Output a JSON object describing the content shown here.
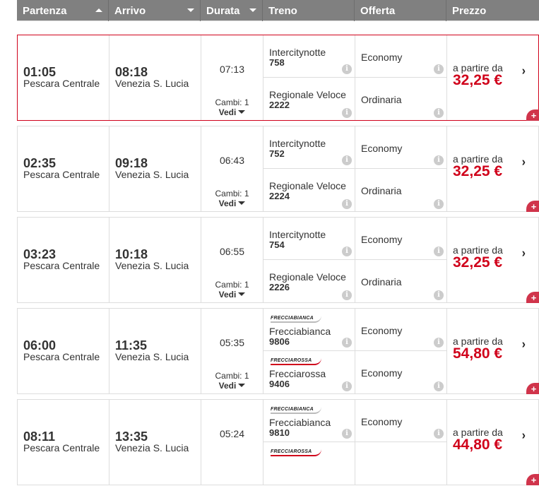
{
  "header": {
    "columns": [
      {
        "label": "Partenza",
        "sort": "up"
      },
      {
        "label": "Arrivo",
        "sort": "down"
      },
      {
        "label": "Durata",
        "sort": "down"
      },
      {
        "label": "Treno"
      },
      {
        "label": "Offerta"
      },
      {
        "label": "Prezzo"
      }
    ]
  },
  "labels": {
    "cambi_prefix": "Cambi: ",
    "vedi": "Vedi",
    "from": "a partire da",
    "info": "i",
    "plus": "+",
    "chevron": "›"
  },
  "colors": {
    "accent": "#d0021b",
    "header_bg": "#808080"
  },
  "solutions": [
    {
      "selected": true,
      "dep_time": "01:05",
      "dep_station": "Pescara Centrale",
      "arr_time": "08:18",
      "arr_station": "Venezia S. Lucia",
      "duration": "07:13",
      "changes": "1",
      "price": "32,25 €",
      "legs": [
        {
          "train": "Intercitynotte",
          "number": "758",
          "offer": "Economy"
        },
        {
          "train": "Regionale Veloce",
          "number": "2222",
          "offer": "Ordinaria"
        }
      ]
    },
    {
      "dep_time": "02:35",
      "dep_station": "Pescara Centrale",
      "arr_time": "09:18",
      "arr_station": "Venezia S. Lucia",
      "duration": "06:43",
      "changes": "1",
      "price": "32,25 €",
      "legs": [
        {
          "train": "Intercitynotte",
          "number": "752",
          "offer": "Economy"
        },
        {
          "train": "Regionale Veloce",
          "number": "2224",
          "offer": "Ordinaria"
        }
      ]
    },
    {
      "dep_time": "03:23",
      "dep_station": "Pescara Centrale",
      "arr_time": "10:18",
      "arr_station": "Venezia S. Lucia",
      "duration": "06:55",
      "changes": "1",
      "price": "32,25 €",
      "legs": [
        {
          "train": "Intercitynotte",
          "number": "754",
          "offer": "Economy"
        },
        {
          "train": "Regionale Veloce",
          "number": "2226",
          "offer": "Ordinaria"
        }
      ]
    },
    {
      "dep_time": "06:00",
      "dep_station": "Pescara Centrale",
      "arr_time": "11:35",
      "arr_station": "Venezia S. Lucia",
      "duration": "05:35",
      "changes": "1",
      "price": "54,80 €",
      "legs": [
        {
          "logo": "FRECCIABIANCA",
          "train": "Frecciabianca",
          "number": "9806",
          "offer": "Economy"
        },
        {
          "logo": "FRECCIAROSSA",
          "train": "Frecciarossa",
          "number": "9406",
          "offer": "Economy"
        }
      ]
    },
    {
      "dep_time": "08:11",
      "dep_station": "Pescara Centrale",
      "arr_time": "13:35",
      "arr_station": "Venezia S. Lucia",
      "duration": "05:24",
      "price": "44,80 €",
      "legs": [
        {
          "logo": "FRECCIABIANCA",
          "train": "Frecciabianca",
          "number": "9810",
          "offer": "Economy"
        },
        {
          "logo": "FRECCIAROSSA"
        }
      ]
    }
  ]
}
